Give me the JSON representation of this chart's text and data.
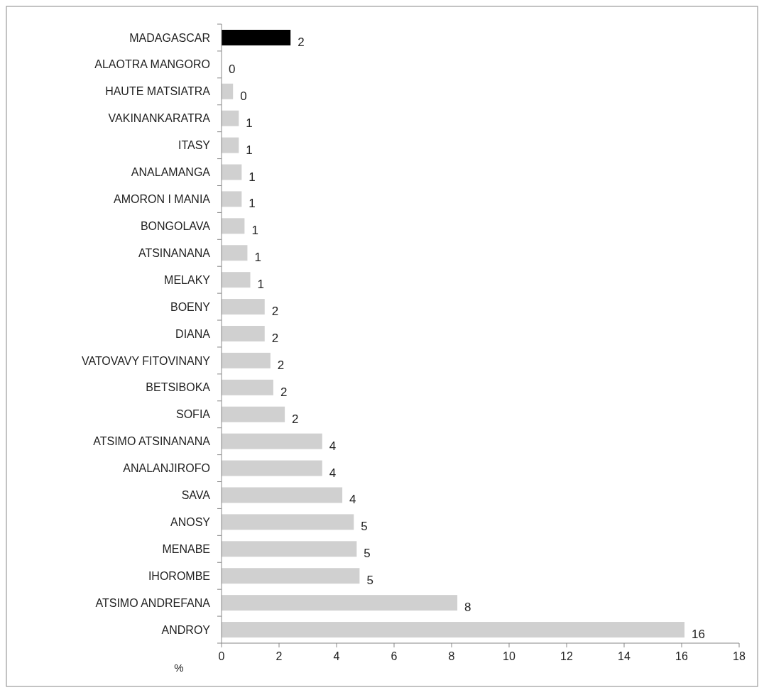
{
  "chart_data": {
    "type": "bar",
    "orientation": "horizontal",
    "xlabel": "%",
    "categories": [
      "MADAGASCAR",
      "ALAOTRA MANGORO",
      "HAUTE MATSIATRA",
      "VAKINANKARATRA",
      "ITASY",
      "ANALAMANGA",
      "AMORON I MANIA",
      "BONGOLAVA",
      "ATSINANANA",
      "MELAKY",
      "BOENY",
      "DIANA",
      "VATOVAVY FITOVINANY",
      "BETSIBOKA",
      "SOFIA",
      "ATSIMO ATSINANANA",
      "ANALANJIROFO",
      "SAVA",
      "ANOSY",
      "MENABE",
      "IHOROMBE",
      "ATSIMO ANDREFANA",
      "ANDROY"
    ],
    "values": [
      2.4,
      0,
      0.4,
      0.6,
      0.6,
      0.7,
      0.7,
      0.8,
      0.9,
      1.0,
      1.5,
      1.5,
      1.7,
      1.8,
      2.2,
      3.5,
      3.5,
      4.2,
      4.6,
      4.7,
      4.8,
      8.2,
      16.1
    ],
    "value_labels": [
      "2",
      "0",
      "0",
      "1",
      "1",
      "1",
      "1",
      "1",
      "1",
      "1",
      "2",
      "2",
      "2",
      "2",
      "2",
      "4",
      "4",
      "4",
      "5",
      "5",
      "5",
      "8",
      "16"
    ],
    "colors": [
      "#000000",
      "#d0d0d0",
      "#d0d0d0",
      "#d0d0d0",
      "#d0d0d0",
      "#d0d0d0",
      "#d0d0d0",
      "#d0d0d0",
      "#d0d0d0",
      "#d0d0d0",
      "#d0d0d0",
      "#d0d0d0",
      "#d0d0d0",
      "#d0d0d0",
      "#d0d0d0",
      "#d0d0d0",
      "#d0d0d0",
      "#d0d0d0",
      "#d0d0d0",
      "#d0d0d0",
      "#d0d0d0",
      "#d0d0d0",
      "#d0d0d0"
    ],
    "xlim": [
      0,
      18
    ],
    "xticks": [
      0,
      2,
      4,
      6,
      8,
      10,
      12,
      14,
      16,
      18
    ]
  }
}
